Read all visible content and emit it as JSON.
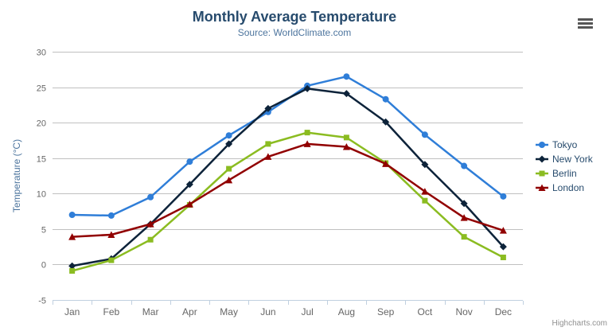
{
  "chart": {
    "credits": "Highcharts.com",
    "icons": {
      "context_menu": "hamburger-icon"
    }
  },
  "chart_data": {
    "type": "line",
    "title": "Monthly Average Temperature",
    "subtitle": "Source: WorldClimate.com",
    "categories": [
      "Jan",
      "Feb",
      "Mar",
      "Apr",
      "May",
      "Jun",
      "Jul",
      "Aug",
      "Sep",
      "Oct",
      "Nov",
      "Dec"
    ],
    "xlabel": "",
    "ylabel": "Temperature (°C)",
    "ylim": [
      -5,
      30
    ],
    "ytick_interval": 5,
    "grid": true,
    "legend_position": "right",
    "axis_colors": {
      "grid": "#c0c0c0",
      "axis_line": "#c0d0e0",
      "tick": "#c0d0e0",
      "labels": "#666666",
      "axis_title": "#4d759e"
    },
    "series": [
      {
        "name": "Tokyo",
        "color": "#2f7ed8",
        "marker": "circle",
        "values": [
          7.0,
          6.9,
          9.5,
          14.5,
          18.2,
          21.5,
          25.2,
          26.5,
          23.3,
          18.3,
          13.9,
          9.6
        ]
      },
      {
        "name": "New York",
        "color": "#0d233a",
        "marker": "diamond",
        "values": [
          -0.2,
          0.8,
          5.7,
          11.3,
          17.0,
          22.0,
          24.8,
          24.1,
          20.1,
          14.1,
          8.6,
          2.5
        ]
      },
      {
        "name": "Berlin",
        "color": "#8bbc21",
        "marker": "square",
        "values": [
          -0.9,
          0.6,
          3.5,
          8.4,
          13.5,
          17.0,
          18.6,
          17.9,
          14.3,
          9.0,
          3.9,
          1.0
        ]
      },
      {
        "name": "London",
        "color": "#910000",
        "marker": "triangle",
        "values": [
          3.9,
          4.2,
          5.7,
          8.5,
          11.9,
          15.2,
          17.0,
          16.6,
          14.2,
          10.3,
          6.6,
          4.8
        ]
      }
    ]
  }
}
